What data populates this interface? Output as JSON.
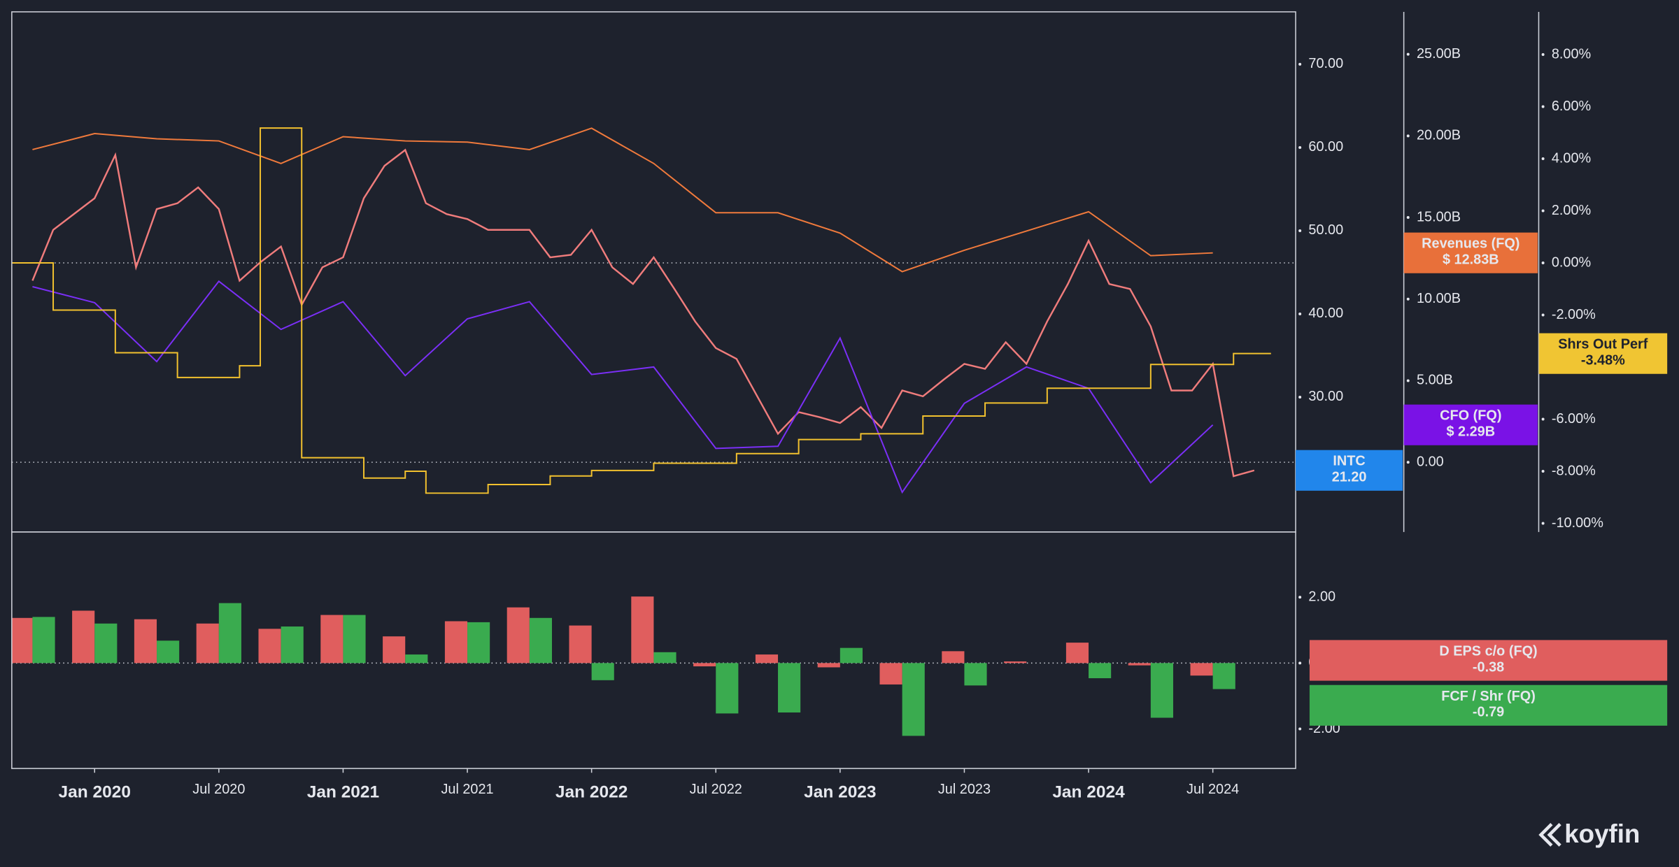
{
  "chart_data": [
    {
      "type": "line",
      "xlim": [
        "2019-09",
        "2024-11"
      ],
      "ylim": [
        13.8,
        76.3
      ],
      "yticks": [
        {
          "value": 20,
          "label": "20.00"
        },
        {
          "value": 30,
          "label": "30.00"
        },
        {
          "value": 40,
          "label": "40.00"
        },
        {
          "value": 50,
          "label": "50.00"
        },
        {
          "value": 60,
          "label": "60.00"
        },
        {
          "value": 70,
          "label": "70.00"
        }
      ],
      "y2lim": [
        -4.27,
        27.6
      ],
      "y2ticks": [
        {
          "value": 0,
          "label": "0.00"
        },
        {
          "value": 5,
          "label": "5.00B"
        },
        {
          "value": 10,
          "label": "10.00B"
        },
        {
          "value": 15,
          "label": "15.00B"
        },
        {
          "value": 20,
          "label": "20.00B"
        },
        {
          "value": 25,
          "label": "25.00B"
        }
      ],
      "y3lim": [
        -10.33,
        9.64
      ],
      "y3ticks": [
        {
          "value": -10,
          "label": "-10.00%"
        },
        {
          "value": -8,
          "label": "-8.00%"
        },
        {
          "value": -6,
          "label": "-6.00%"
        },
        {
          "value": -4,
          "label": "-4.00%"
        },
        {
          "value": -2,
          "label": "-2.00%"
        },
        {
          "value": 0,
          "label": "0.00%"
        },
        {
          "value": 2,
          "label": "2.00%"
        },
        {
          "value": 4,
          "label": "4.00%"
        },
        {
          "value": 6,
          "label": "6.00%"
        },
        {
          "value": 8,
          "label": "8.00%"
        }
      ],
      "series": [
        {
          "name": "INTC",
          "color": "#f07c7c",
          "tag_color": "#2186eb",
          "last_label": "21.20",
          "x": [
            "2019-10",
            "2019-11",
            "2019-12",
            "2020-01",
            "2020-02",
            "2020-03",
            "2020-04",
            "2020-05",
            "2020-06",
            "2020-07",
            "2020-08",
            "2020-09",
            "2020-10",
            "2020-11",
            "2020-12",
            "2021-01",
            "2021-02",
            "2021-03",
            "2021-04",
            "2021-05",
            "2021-06",
            "2021-07",
            "2021-08",
            "2021-09",
            "2021-10",
            "2021-11",
            "2021-12",
            "2022-01",
            "2022-02",
            "2022-03",
            "2022-04",
            "2022-05",
            "2022-06",
            "2022-07",
            "2022-08",
            "2022-09",
            "2022-10",
            "2022-11",
            "2022-12",
            "2023-01",
            "2023-02",
            "2023-03",
            "2023-04",
            "2023-05",
            "2023-06",
            "2023-07",
            "2023-08",
            "2023-09",
            "2023-10",
            "2023-11",
            "2023-12",
            "2024-01",
            "2024-02",
            "2024-03",
            "2024-04",
            "2024-05",
            "2024-06",
            "2024-07",
            "2024-08",
            "2024-09"
          ],
          "values": [
            44.0,
            50.1,
            52.0,
            53.9,
            59.1,
            45.6,
            52.6,
            53.3,
            55.2,
            52.6,
            44.0,
            46.2,
            48.1,
            41.1,
            45.6,
            46.8,
            53.9,
            57.8,
            59.7,
            53.3,
            52.0,
            51.4,
            50.1,
            50.1,
            50.1,
            46.8,
            47.1,
            50.1,
            45.6,
            43.6,
            46.8,
            43.0,
            39.1,
            35.9,
            34.6,
            30.1,
            25.6,
            28.2,
            27.6,
            26.9,
            28.8,
            26.3,
            30.8,
            30.1,
            32.1,
            34.0,
            33.4,
            36.6,
            34.0,
            39.1,
            43.6,
            48.8,
            43.6,
            43.0,
            38.5,
            30.8,
            30.8,
            34.0,
            20.5,
            21.2
          ]
        },
        {
          "name": "Revenues (FQ)",
          "axis": "y2",
          "color": "#f07a3c",
          "tag_color": "#e8703a",
          "last_label": "$ 12.83B",
          "x": [
            "2019-10",
            "2020-01",
            "2020-04",
            "2020-07",
            "2020-10",
            "2021-01",
            "2021-04",
            "2021-07",
            "2021-10",
            "2022-01",
            "2022-04",
            "2022-07",
            "2022-10",
            "2023-01",
            "2023-04",
            "2023-07",
            "2023-10",
            "2024-01",
            "2024-04",
            "2024-07"
          ],
          "values": [
            19.16,
            20.14,
            19.82,
            19.69,
            18.31,
            19.95,
            19.69,
            19.62,
            19.16,
            20.47,
            18.31,
            15.29,
            15.29,
            14.04,
            11.68,
            12.99,
            14.17,
            15.35,
            12.66,
            12.83
          ]
        },
        {
          "name": "CFO (FQ)",
          "axis": "y2",
          "color": "#7b2ff7",
          "tag_color": "#7a12e6",
          "last_label": "$ 2.29B",
          "x": [
            "2019-10",
            "2020-01",
            "2020-04",
            "2020-07",
            "2020-10",
            "2021-01",
            "2021-04",
            "2021-07",
            "2021-10",
            "2022-01",
            "2022-04",
            "2022-07",
            "2022-10",
            "2023-01",
            "2023-04",
            "2023-07",
            "2023-10",
            "2024-01",
            "2024-04",
            "2024-07"
          ],
          "values": [
            10.76,
            9.78,
            6.17,
            11.09,
            8.14,
            9.84,
            5.31,
            8.79,
            9.84,
            5.38,
            5.84,
            0.85,
            0.98,
            7.61,
            -1.84,
            3.61,
            5.84,
            4.53,
            -1.25,
            2.29
          ]
        },
        {
          "name": "Shrs Out Perf",
          "axis": "y3",
          "step": true,
          "color": "#f2c12e",
          "tag_color": "#f0c533",
          "last_label": "-3.48%",
          "x": [
            "2019-09",
            "2019-11",
            "2020-02",
            "2020-05",
            "2020-08",
            "2020-09",
            "2020-11",
            "2021-02",
            "2021-04",
            "2021-05",
            "2021-08",
            "2021-11",
            "2022-01",
            "2022-04",
            "2022-08",
            "2022-11",
            "2023-02",
            "2023-05",
            "2023-08",
            "2023-11",
            "2024-04",
            "2024-08"
          ],
          "values": [
            0,
            -1.81,
            -3.45,
            -4.4,
            -3.95,
            5.18,
            -7.48,
            -8.26,
            -8.0,
            -8.84,
            -8.51,
            -8.18,
            -7.97,
            -7.69,
            -7.32,
            -6.78,
            -6.56,
            -5.88,
            -5.38,
            -4.81,
            -3.9,
            -3.48
          ]
        }
      ]
    },
    {
      "type": "bar",
      "xlim": [
        "2019-09",
        "2024-11"
      ],
      "xticks": [
        {
          "value": "2020-01",
          "label": "Jan 2020"
        },
        {
          "value": "2020-07",
          "label": "Jul 2020"
        },
        {
          "value": "2021-01",
          "label": "Jan 2021"
        },
        {
          "value": "2021-07",
          "label": "Jul 2021"
        },
        {
          "value": "2022-01",
          "label": "Jan 2022"
        },
        {
          "value": "2022-07",
          "label": "Jul 2022"
        },
        {
          "value": "2023-01",
          "label": "Jan 2023"
        },
        {
          "value": "2023-07",
          "label": "Jul 2023"
        },
        {
          "value": "2024-01",
          "label": "Jan 2024"
        },
        {
          "value": "2024-07",
          "label": "Jul 2024"
        }
      ],
      "ylim": [
        -3.2,
        3.98
      ],
      "yticks": [
        {
          "value": -2,
          "label": "-2.00"
        },
        {
          "value": 0,
          "label": "0.00"
        },
        {
          "value": 2,
          "label": "2.00"
        }
      ],
      "x": [
        "2019-10",
        "2020-01",
        "2020-04",
        "2020-07",
        "2020-10",
        "2021-01",
        "2021-04",
        "2021-07",
        "2021-10",
        "2022-01",
        "2022-04",
        "2022-07",
        "2022-10",
        "2023-01",
        "2023-04",
        "2023-07",
        "2023-10",
        "2024-01",
        "2024-04",
        "2024-07"
      ],
      "series": [
        {
          "name": "D EPS c/o (FQ)",
          "color": "#e05e5e",
          "last_label": "-0.38",
          "values": [
            1.37,
            1.59,
            1.33,
            1.2,
            1.04,
            1.46,
            0.81,
            1.27,
            1.69,
            1.14,
            2.02,
            -0.1,
            0.26,
            -0.13,
            -0.65,
            0.36,
            0.05,
            0.62,
            -0.07,
            -0.38
          ]
        },
        {
          "name": "FCF / Shr (FQ)",
          "color": "#3aab4f",
          "last_label": "-0.79",
          "values": [
            1.4,
            1.2,
            0.68,
            1.82,
            1.11,
            1.46,
            0.26,
            1.24,
            1.37,
            -0.52,
            0.33,
            -1.53,
            -1.5,
            0.46,
            -2.21,
            -0.68,
            0,
            -0.46,
            -1.66,
            -0.79
          ]
        }
      ]
    }
  ],
  "brand": "koyfin"
}
